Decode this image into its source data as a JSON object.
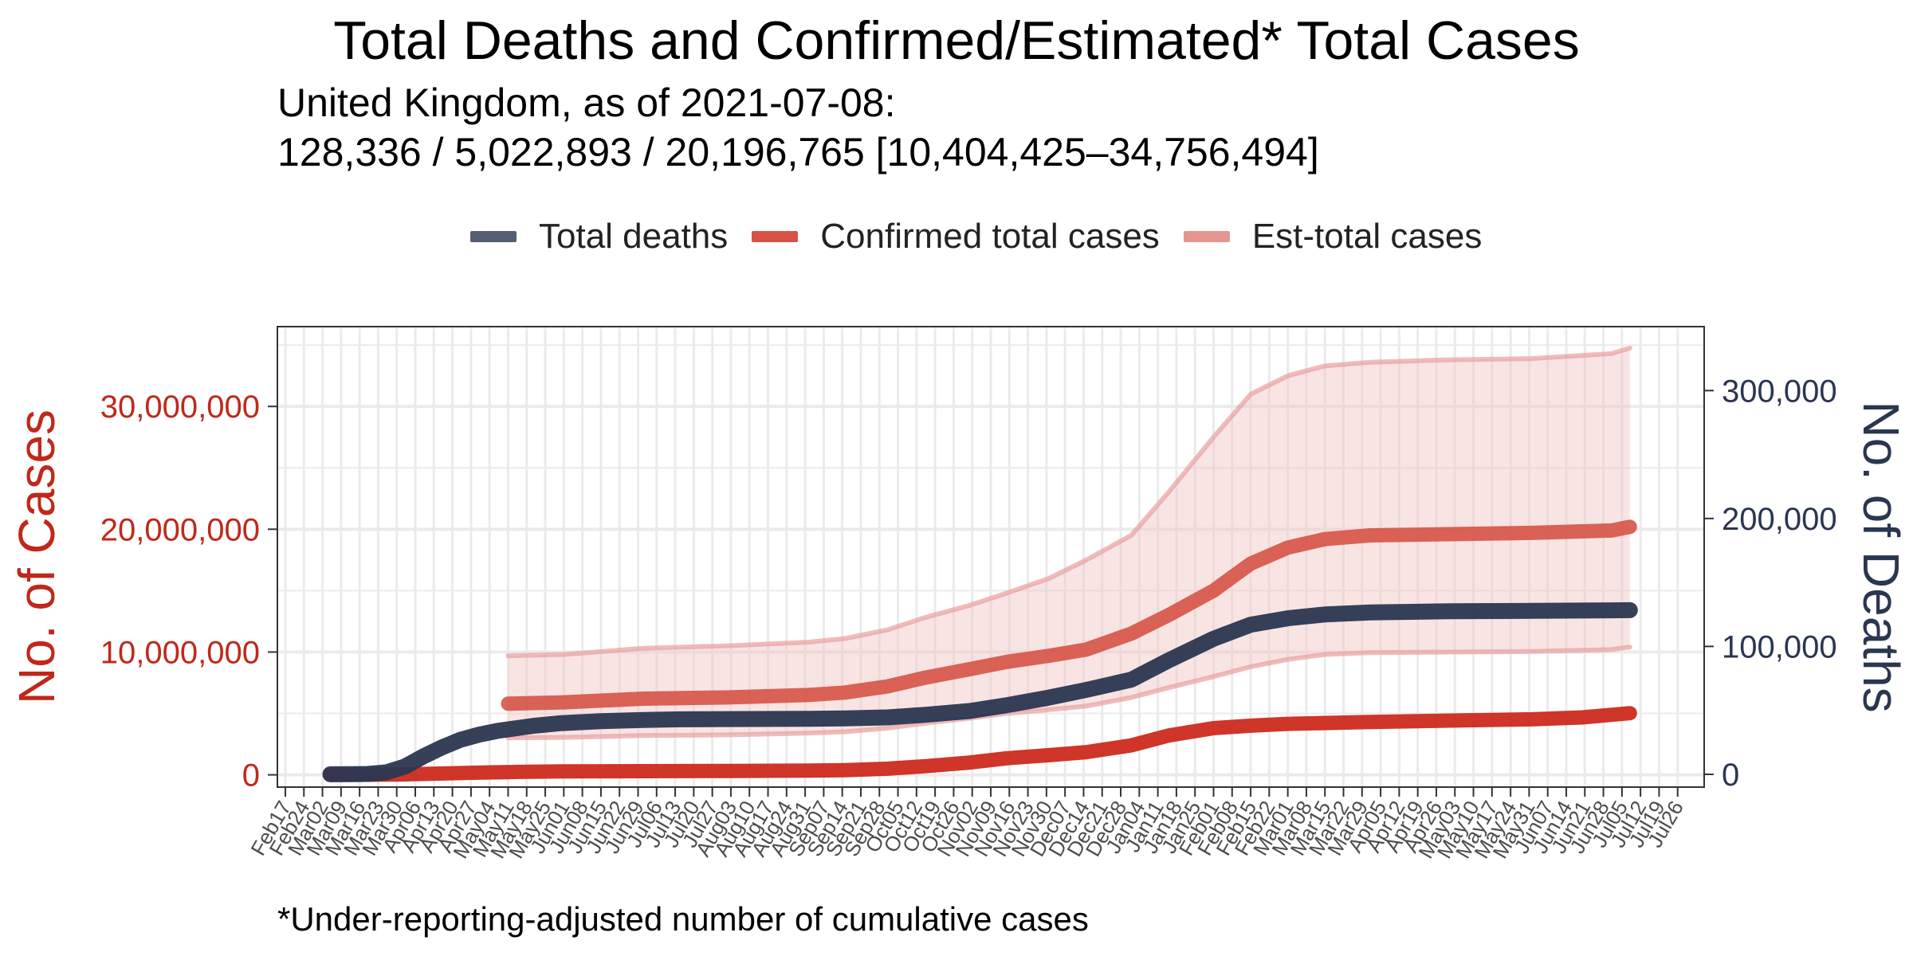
{
  "chart_data": {
    "type": "line",
    "title": "Total Deaths and Confirmed/Estimated* Total Cases",
    "subtitle_line1": "United Kingdom, as of 2021-07-08:",
    "subtitle_line2": "128,336 / 5,022,893 / 20,196,765 [10,404,425–34,756,494]",
    "caption": "*Under-reporting-adjusted number of cumulative cases",
    "y_left_label": "No. of Cases",
    "y_right_label": "No. of Deaths",
    "x_range": [
      "2020-02-17",
      "2021-08-02"
    ],
    "y_left_range": [
      -1000000,
      36500000
    ],
    "y_right_range": [
      -10000,
      350000
    ],
    "y_left_ticks": [
      0,
      10000000,
      20000000,
      30000000
    ],
    "y_left_tick_labels": [
      "0",
      "10,000,000",
      "20,000,000",
      "30,000,000"
    ],
    "y_right_ticks": [
      0,
      100000,
      200000,
      300000
    ],
    "y_right_tick_labels": [
      "0",
      "100,000",
      "200,000",
      "300,000"
    ],
    "x_ticks": [
      "2020-02-17",
      "2020-02-24",
      "2020-03-02",
      "2020-03-09",
      "2020-03-16",
      "2020-03-23",
      "2020-03-30",
      "2020-04-06",
      "2020-04-13",
      "2020-04-20",
      "2020-04-27",
      "2020-05-04",
      "2020-05-11",
      "2020-05-18",
      "2020-05-25",
      "2020-06-01",
      "2020-06-08",
      "2020-06-15",
      "2020-06-22",
      "2020-06-29",
      "2020-07-06",
      "2020-07-13",
      "2020-07-20",
      "2020-07-27",
      "2020-08-03",
      "2020-08-10",
      "2020-08-17",
      "2020-08-24",
      "2020-08-31",
      "2020-09-07",
      "2020-09-14",
      "2020-09-21",
      "2020-09-28",
      "2020-10-05",
      "2020-10-12",
      "2020-10-19",
      "2020-10-26",
      "2020-11-02",
      "2020-11-09",
      "2020-11-16",
      "2020-11-23",
      "2020-11-30",
      "2020-12-07",
      "2020-12-14",
      "2020-12-21",
      "2020-12-28",
      "2021-01-04",
      "2021-01-11",
      "2021-01-18",
      "2021-01-25",
      "2021-02-01",
      "2021-02-08",
      "2021-02-15",
      "2021-02-22",
      "2021-03-01",
      "2021-03-08",
      "2021-03-15",
      "2021-03-22",
      "2021-03-29",
      "2021-04-05",
      "2021-04-12",
      "2021-04-19",
      "2021-04-26",
      "2021-05-03",
      "2021-05-10",
      "2021-05-17",
      "2021-05-24",
      "2021-05-31",
      "2021-06-07",
      "2021-06-14",
      "2021-06-21",
      "2021-06-28",
      "2021-07-05",
      "2021-07-12",
      "2021-07-19",
      "2021-07-26"
    ],
    "x_tick_labels": [
      "Feb17",
      "Feb24",
      "Mar02",
      "Mar09",
      "Mar16",
      "Mar23",
      "Mar30",
      "Apr06",
      "Apr13",
      "Apr20",
      "Apr27",
      "May04",
      "May11",
      "May18",
      "May25",
      "Jun01",
      "Jun08",
      "Jun15",
      "Jun22",
      "Jun29",
      "Jul06",
      "Jul13",
      "Jul20",
      "Jul27",
      "Aug03",
      "Aug10",
      "Aug17",
      "Aug24",
      "Aug31",
      "Sep07",
      "Sep14",
      "Sep21",
      "Sep28",
      "Oct05",
      "Oct12",
      "Oct19",
      "Oct26",
      "Nov02",
      "Nov09",
      "Nov16",
      "Nov23",
      "Nov30",
      "Dec07",
      "Dec14",
      "Dec21",
      "Dec28",
      "Jan04",
      "Jan11",
      "Jan18",
      "Jan25",
      "Feb01",
      "Feb08",
      "Feb15",
      "Feb22",
      "Mar01",
      "Mar08",
      "Mar15",
      "Mar22",
      "Mar29",
      "Apr05",
      "Apr12",
      "Apr19",
      "Apr26",
      "May03",
      "May10",
      "May17",
      "May24",
      "May31",
      "Jun07",
      "Jun14",
      "Jun21",
      "Jun28",
      "Jul05",
      "Jul12",
      "Jul19",
      "Jul26"
    ],
    "grid": true,
    "legend_position": "top",
    "colors": {
      "deaths": "#2b3650",
      "confirmed": "#cc2a1c",
      "estimated": "#d44a3c",
      "band": "#f2c4c4",
      "band_edge": "#e8a0a0",
      "left_axis_text": "#c0281a",
      "right_axis_text": "#2b3650"
    },
    "series": [
      {
        "name": "Total deaths",
        "axis": "right",
        "x": [
          "2020-03-05",
          "2020-03-12",
          "2020-03-19",
          "2020-03-26",
          "2020-04-02",
          "2020-04-09",
          "2020-04-16",
          "2020-04-23",
          "2020-04-30",
          "2020-05-07",
          "2020-05-14",
          "2020-05-21",
          "2020-05-31",
          "2020-06-15",
          "2020-07-01",
          "2020-07-15",
          "2020-08-01",
          "2020-09-01",
          "2020-09-15",
          "2020-10-01",
          "2020-10-15",
          "2020-11-01",
          "2020-11-15",
          "2020-12-01",
          "2020-12-15",
          "2021-01-01",
          "2021-01-15",
          "2021-02-01",
          "2021-02-15",
          "2021-03-01",
          "2021-03-15",
          "2021-04-01",
          "2021-05-01",
          "2021-06-01",
          "2021-07-01",
          "2021-07-08"
        ],
        "y": [
          0,
          100,
          300,
          1500,
          6000,
          14000,
          21000,
          27000,
          31000,
          34000,
          36000,
          38000,
          40000,
          41500,
          42500,
          43000,
          43200,
          43400,
          43700,
          44500,
          46500,
          49500,
          54000,
          60000,
          66000,
          74000,
          89000,
          106000,
          117000,
          122000,
          125000,
          126500,
          127500,
          127800,
          128200,
          128336
        ]
      },
      {
        "name": "Confirmed total cases",
        "axis": "left",
        "x": [
          "2020-03-05",
          "2020-03-19",
          "2020-04-01",
          "2020-04-15",
          "2020-05-01",
          "2020-05-15",
          "2020-06-01",
          "2020-07-01",
          "2020-08-01",
          "2020-09-01",
          "2020-09-15",
          "2020-10-01",
          "2020-10-15",
          "2020-11-01",
          "2020-11-15",
          "2020-12-01",
          "2020-12-15",
          "2021-01-01",
          "2021-01-15",
          "2021-02-01",
          "2021-02-15",
          "2021-03-01",
          "2021-04-01",
          "2021-05-01",
          "2021-06-01",
          "2021-06-20",
          "2021-07-08"
        ],
        "y": [
          0,
          5000,
          30000,
          100000,
          180000,
          240000,
          280000,
          300000,
          320000,
          340000,
          380000,
          500000,
          700000,
          1000000,
          1350000,
          1600000,
          1850000,
          2400000,
          3200000,
          3800000,
          4000000,
          4150000,
          4300000,
          4420000,
          4520000,
          4680000,
          5022893
        ]
      },
      {
        "name": "Est-total cases",
        "axis": "left",
        "x": [
          "2020-05-11",
          "2020-06-01",
          "2020-07-01",
          "2020-08-01",
          "2020-09-01",
          "2020-09-15",
          "2020-10-01",
          "2020-10-15",
          "2020-11-01",
          "2020-11-15",
          "2020-12-01",
          "2020-12-15",
          "2021-01-01",
          "2021-01-15",
          "2021-02-01",
          "2021-02-15",
          "2021-03-01",
          "2021-03-15",
          "2021-04-01",
          "2021-05-01",
          "2021-06-01",
          "2021-07-01",
          "2021-07-08"
        ],
        "y": [
          5800000,
          5900000,
          6200000,
          6300000,
          6500000,
          6700000,
          7200000,
          7900000,
          8600000,
          9200000,
          9700000,
          10200000,
          11500000,
          13000000,
          15000000,
          17200000,
          18500000,
          19200000,
          19500000,
          19600000,
          19700000,
          19900000,
          20196765
        ]
      }
    ],
    "est_band": {
      "x": [
        "2020-05-11",
        "2020-06-01",
        "2020-07-01",
        "2020-08-01",
        "2020-09-01",
        "2020-09-15",
        "2020-10-01",
        "2020-10-15",
        "2020-11-01",
        "2020-11-15",
        "2020-12-01",
        "2020-12-15",
        "2021-01-01",
        "2021-01-15",
        "2021-02-01",
        "2021-02-15",
        "2021-03-01",
        "2021-03-15",
        "2021-04-01",
        "2021-05-01",
        "2021-06-01",
        "2021-07-01",
        "2021-07-08"
      ],
      "lower": [
        3000000,
        3050000,
        3200000,
        3250000,
        3400000,
        3500000,
        3800000,
        4200000,
        4600000,
        5000000,
        5300000,
        5600000,
        6300000,
        7100000,
        8000000,
        8800000,
        9400000,
        9800000,
        9950000,
        10000000,
        10050000,
        10200000,
        10404425
      ],
      "upper": [
        9700000,
        9800000,
        10300000,
        10500000,
        10800000,
        11100000,
        11800000,
        12800000,
        13800000,
        14800000,
        16000000,
        17500000,
        19500000,
        23000000,
        27500000,
        31000000,
        32500000,
        33300000,
        33600000,
        33800000,
        33900000,
        34300000,
        34756494
      ]
    }
  }
}
